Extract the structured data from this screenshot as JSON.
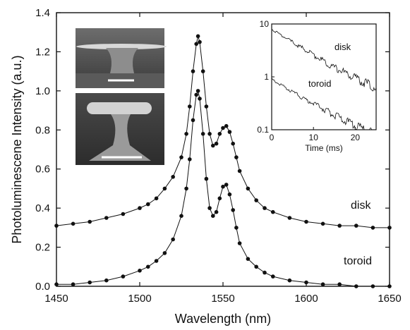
{
  "chart_data": [
    {
      "type": "scatter",
      "xlabel": "Wavelength (nm)",
      "ylabel": "Photoluminescene Intensity (a.u.)",
      "xlim": [
        1450,
        1650
      ],
      "ylim": [
        0.0,
        1.4
      ],
      "xticks": [
        "1450",
        "1500",
        "1550",
        "1600",
        "1650"
      ],
      "yticks": [
        "0.0",
        "0.2",
        "0.4",
        "0.6",
        "0.8",
        "1.0",
        "1.2",
        "1.4"
      ],
      "series": [
        {
          "name": "disk",
          "x": [
            1450,
            1460,
            1470,
            1480,
            1490,
            1500,
            1505,
            1510,
            1515,
            1520,
            1525,
            1528,
            1530,
            1532,
            1534,
            1535,
            1536,
            1538,
            1540,
            1542,
            1544,
            1546,
            1548,
            1550,
            1552,
            1554,
            1556,
            1558,
            1560,
            1565,
            1570,
            1575,
            1580,
            1590,
            1600,
            1610,
            1620,
            1630,
            1640,
            1650
          ],
          "y": [
            0.31,
            0.32,
            0.33,
            0.35,
            0.37,
            0.4,
            0.42,
            0.45,
            0.5,
            0.56,
            0.66,
            0.78,
            0.92,
            1.1,
            1.24,
            1.28,
            1.25,
            1.1,
            0.92,
            0.78,
            0.72,
            0.73,
            0.78,
            0.81,
            0.82,
            0.79,
            0.73,
            0.66,
            0.59,
            0.5,
            0.44,
            0.4,
            0.38,
            0.35,
            0.33,
            0.32,
            0.31,
            0.31,
            0.3,
            0.3
          ]
        },
        {
          "name": "toroid",
          "x": [
            1450,
            1460,
            1470,
            1480,
            1490,
            1500,
            1505,
            1510,
            1515,
            1520,
            1525,
            1528,
            1530,
            1532,
            1534,
            1535,
            1536,
            1538,
            1540,
            1542,
            1544,
            1546,
            1548,
            1550,
            1552,
            1554,
            1556,
            1558,
            1560,
            1565,
            1570,
            1575,
            1580,
            1590,
            1600,
            1610,
            1620,
            1630,
            1640,
            1650
          ],
          "y": [
            0.01,
            0.01,
            0.02,
            0.03,
            0.05,
            0.08,
            0.1,
            0.13,
            0.17,
            0.24,
            0.36,
            0.5,
            0.65,
            0.85,
            0.98,
            1.0,
            0.96,
            0.78,
            0.55,
            0.4,
            0.36,
            0.38,
            0.45,
            0.51,
            0.52,
            0.47,
            0.39,
            0.3,
            0.22,
            0.14,
            0.1,
            0.07,
            0.05,
            0.03,
            0.02,
            0.01,
            0.01,
            0.0,
            0.0,
            0.0
          ]
        }
      ]
    },
    {
      "type": "line",
      "xlabel": "Time (ms)",
      "xlim": [
        0,
        25
      ],
      "ylim": [
        0.1,
        10
      ],
      "yscale": "log",
      "xticks": [
        "0",
        "10",
        "20"
      ],
      "yticks": [
        "0.1",
        "1",
        "10"
      ],
      "series": [
        {
          "name": "disk",
          "x": [
            0,
            5,
            10,
            15,
            20,
            25
          ],
          "y": [
            8.0,
            4.5,
            2.6,
            1.5,
            0.95,
            0.6
          ]
        },
        {
          "name": "toroid",
          "x": [
            0,
            5,
            10,
            15,
            20,
            25
          ],
          "y": [
            0.9,
            0.52,
            0.31,
            0.19,
            0.12,
            0.08
          ]
        }
      ]
    }
  ]
}
